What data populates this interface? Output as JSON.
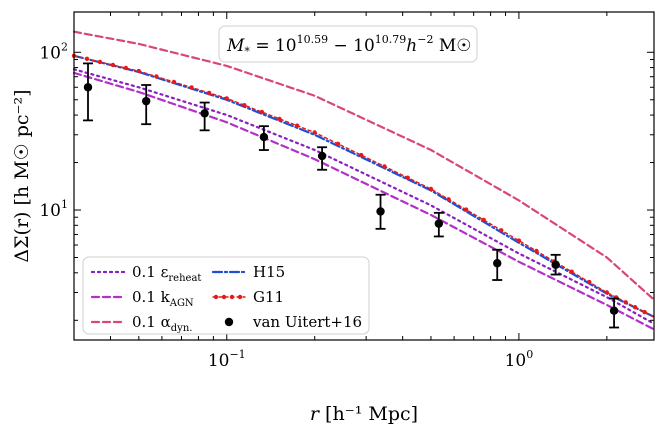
{
  "chart_data": {
    "type": "line",
    "xscale": "log",
    "yscale": "log",
    "xlim": [
      0.03,
      2.9
    ],
    "ylim": [
      1.5,
      180
    ],
    "xlabel_main": "r",
    "xlabel_unit": "[h⁻¹ Mpc]",
    "ylabel_main": "ΔΣ(r)",
    "ylabel_unit": "[h M☉ pc⁻²]",
    "x_ticks": [
      {
        "value": 0.1,
        "base": "10",
        "exp": "−1"
      },
      {
        "value": 1,
        "base": "10",
        "exp": "0"
      }
    ],
    "y_ticks": [
      {
        "value": 10,
        "base": "10",
        "exp": "1"
      },
      {
        "value": 100,
        "base": "10",
        "exp": "2"
      }
    ],
    "annotation": "M* = 10^10.59 − 10^10.79 h⁻² M☉",
    "annotation_parts": {
      "pre": "M",
      "sub": "*",
      "mid1": " = 10",
      "exp1": "10.59",
      "mid2": " − 10",
      "exp2": "10.79",
      "mid3": "h",
      "exp3": "−2",
      "post": " M☉"
    },
    "series": [
      {
        "name": "0.1 ε_reheat",
        "label_main": "0.1 ε",
        "label_sub": "reheat",
        "style": "dotted",
        "color": "#8a1fc0",
        "x": [
          0.03,
          0.05,
          0.1,
          0.2,
          0.5,
          1.0,
          2.0,
          2.9
        ],
        "y": [
          78,
          60,
          40,
          24,
          10.7,
          5.3,
          2.8,
          1.9
        ]
      },
      {
        "name": "0.1 k_AGN",
        "label_main": "0.1 k",
        "label_sub": "AGN",
        "style": "dashed",
        "color": "#b230c8",
        "x": [
          0.03,
          0.05,
          0.1,
          0.2,
          0.5,
          1.0,
          2.0,
          2.9
        ],
        "y": [
          74,
          56,
          36,
          21,
          9.3,
          4.7,
          2.5,
          1.75
        ]
      },
      {
        "name": "0.1 α_dyn.",
        "label_main": "0.1 α",
        "label_sub": "dyn.",
        "style": "dashed",
        "color": "#d9467a",
        "x": [
          0.03,
          0.05,
          0.1,
          0.2,
          0.5,
          1.0,
          2.0,
          2.9
        ],
        "y": [
          135,
          113,
          82,
          53,
          24,
          11.5,
          5.0,
          2.7
        ]
      },
      {
        "name": "H15",
        "label_main": "H15",
        "label_sub": "",
        "style": "dashdot",
        "color": "#1f4fd6",
        "x": [
          0.03,
          0.05,
          0.1,
          0.2,
          0.5,
          1.0,
          2.0,
          2.9
        ],
        "y": [
          95,
          75,
          50,
          30,
          13.3,
          6.2,
          2.95,
          2.1
        ]
      },
      {
        "name": "G11",
        "label_main": "G11",
        "label_sub": "",
        "style": "dotmarker",
        "color": "#e61a1a",
        "x": [
          0.03,
          0.05,
          0.1,
          0.2,
          0.5,
          1.0,
          2.0,
          2.9
        ],
        "y": [
          95,
          76,
          51,
          31,
          13.6,
          6.4,
          3.0,
          2.1
        ]
      }
    ],
    "observations": {
      "name": "van Uitert+16",
      "label_main": "van Uitert+16",
      "color": "#000000",
      "points": [
        {
          "x": 0.0335,
          "y": 60,
          "lo": 37,
          "hi": 85
        },
        {
          "x": 0.053,
          "y": 49,
          "lo": 35,
          "hi": 62
        },
        {
          "x": 0.084,
          "y": 41,
          "lo": 32,
          "hi": 48
        },
        {
          "x": 0.134,
          "y": 29,
          "lo": 24,
          "hi": 34
        },
        {
          "x": 0.212,
          "y": 22,
          "lo": 18,
          "hi": 25
        },
        {
          "x": 0.336,
          "y": 9.8,
          "lo": 7.6,
          "hi": 12.5
        },
        {
          "x": 0.532,
          "y": 8.2,
          "lo": 6.8,
          "hi": 9.6
        },
        {
          "x": 0.843,
          "y": 4.6,
          "lo": 3.6,
          "hi": 5.6
        },
        {
          "x": 1.336,
          "y": 4.5,
          "lo": 3.9,
          "hi": 5.2
        },
        {
          "x": 2.117,
          "y": 2.3,
          "lo": 1.8,
          "hi": 2.75
        }
      ]
    },
    "legend_placement": "lower-left"
  }
}
